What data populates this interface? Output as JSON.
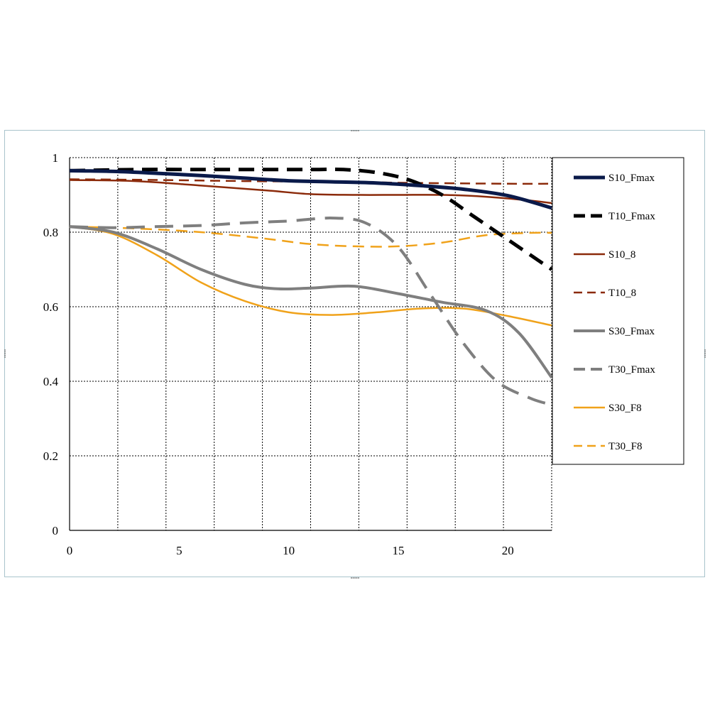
{
  "chart_data": {
    "type": "line",
    "xlim": [
      0,
      22
    ],
    "ylim": [
      0,
      1
    ],
    "x_ticks": [
      "0",
      "5",
      "10",
      "15",
      "20"
    ],
    "x_tick_values": [
      0,
      5,
      10,
      15,
      20
    ],
    "y_ticks": [
      "0",
      "0.2",
      "0.4",
      "0.6",
      "0.8",
      "1"
    ],
    "y_tick_values": [
      0,
      0.2,
      0.4,
      0.6,
      0.8,
      1
    ],
    "x_gridlines": [
      2.2,
      4.4,
      6.6,
      8.8,
      11,
      13.2,
      15.4,
      17.6,
      19.8,
      22
    ],
    "y_gridlines": [
      0.2,
      0.4,
      0.6,
      0.8,
      1
    ],
    "grid": true,
    "legend_position": "right",
    "series": [
      {
        "name": "S10_Fmax",
        "color": "#0a1a4a",
        "width": 5,
        "dash": "",
        "x": [
          0,
          2,
          4,
          6,
          8,
          10,
          12,
          14,
          16,
          18,
          20,
          22
        ],
        "y": [
          0.965,
          0.963,
          0.958,
          0.952,
          0.945,
          0.938,
          0.935,
          0.932,
          0.925,
          0.915,
          0.898,
          0.865
        ]
      },
      {
        "name": "T10_Fmax",
        "color": "#000000",
        "width": 5,
        "dash": "22,12",
        "x": [
          0,
          3,
          6,
          9,
          11,
          12.5,
          14,
          15.5,
          17,
          18.5,
          20,
          22
        ],
        "y": [
          0.965,
          0.968,
          0.968,
          0.968,
          0.968,
          0.968,
          0.96,
          0.94,
          0.9,
          0.84,
          0.78,
          0.7
        ]
      },
      {
        "name": "S10_8",
        "color": "#8b2a0a",
        "width": 2.5,
        "dash": "",
        "x": [
          0,
          3,
          6,
          9,
          11,
          13,
          15,
          17,
          19,
          21,
          22
        ],
        "y": [
          0.94,
          0.937,
          0.925,
          0.912,
          0.902,
          0.9,
          0.9,
          0.9,
          0.895,
          0.885,
          0.878
        ]
      },
      {
        "name": "T10_8",
        "color": "#8b2a0a",
        "width": 2.5,
        "dash": "14,8",
        "x": [
          0,
          4,
          8,
          12,
          16,
          20,
          22
        ],
        "y": [
          0.942,
          0.94,
          0.937,
          0.935,
          0.932,
          0.93,
          0.93
        ]
      },
      {
        "name": "S30_Fmax",
        "color": "#7f7f7f",
        "width": 4,
        "dash": "",
        "x": [
          0,
          2,
          4,
          6,
          8,
          9.5,
          11,
          13,
          15,
          17,
          19,
          20.5,
          22
        ],
        "y": [
          0.815,
          0.8,
          0.755,
          0.7,
          0.66,
          0.648,
          0.65,
          0.655,
          0.635,
          0.612,
          0.59,
          0.53,
          0.41
        ]
      },
      {
        "name": "T30_Fmax",
        "color": "#7f7f7f",
        "width": 4,
        "dash": "26,14",
        "x": [
          0,
          2,
          4,
          6,
          8,
          10,
          12,
          13.5,
          15,
          16.5,
          18,
          19.5,
          21,
          21.8
        ],
        "y": [
          0.815,
          0.812,
          0.815,
          0.818,
          0.825,
          0.83,
          0.838,
          0.825,
          0.76,
          0.63,
          0.5,
          0.4,
          0.355,
          0.34
        ]
      },
      {
        "name": "S30_F8",
        "color": "#f0a21a",
        "width": 2.5,
        "dash": "",
        "x": [
          0,
          2,
          4,
          6,
          8,
          10,
          12,
          14,
          16,
          18,
          20,
          22
        ],
        "y": [
          0.815,
          0.795,
          0.738,
          0.665,
          0.615,
          0.585,
          0.578,
          0.585,
          0.595,
          0.595,
          0.575,
          0.55
        ]
      },
      {
        "name": "T30_F8",
        "color": "#f0a21a",
        "width": 2.5,
        "dash": "16,9",
        "x": [
          0,
          3,
          6,
          9,
          11,
          13,
          15,
          17,
          19,
          21,
          22
        ],
        "y": [
          0.815,
          0.81,
          0.8,
          0.782,
          0.768,
          0.762,
          0.762,
          0.772,
          0.792,
          0.798,
          0.798
        ]
      }
    ]
  }
}
